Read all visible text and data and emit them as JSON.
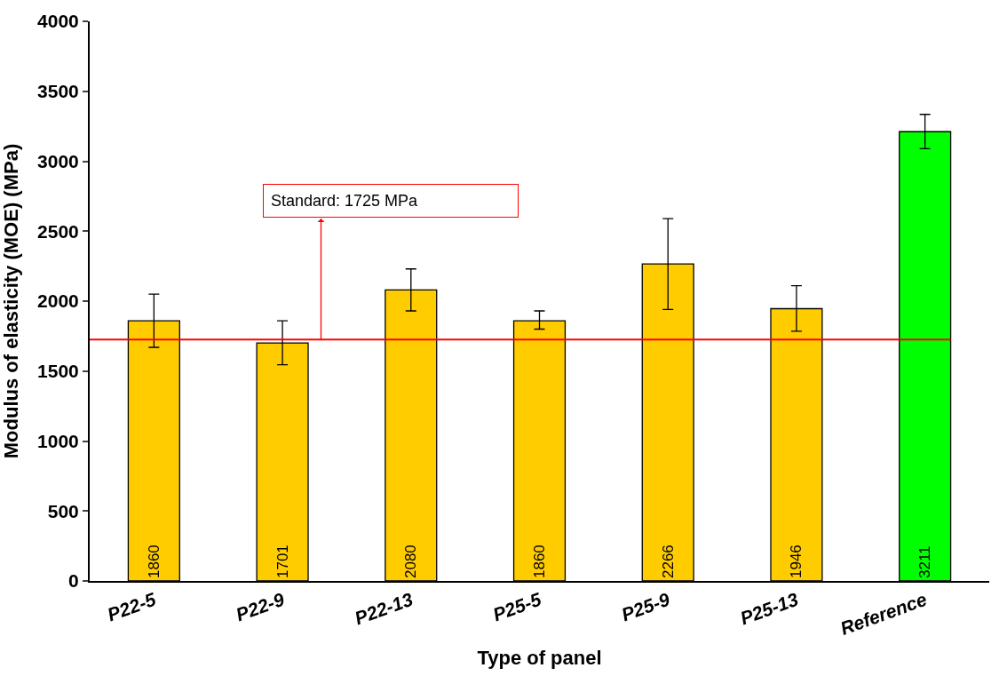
{
  "chart_data": {
    "type": "bar",
    "xlabel": "Type of panel",
    "ylabel": "Modulus of elasticity (MOE) (MPa)",
    "categories": [
      "P22-5",
      "P22-9",
      "P22-13",
      "P25-5",
      "P25-9",
      "P25-13",
      "Reference"
    ],
    "values": [
      1860,
      1701,
      2080,
      1860,
      2266,
      1946,
      3211
    ],
    "colors": [
      "#ffcc00",
      "#ffcc00",
      "#ffcc00",
      "#ffcc00",
      "#ffcc00",
      "#ffcc00",
      "#00ff00"
    ],
    "errors": [
      [
        1670,
        2050
      ],
      [
        1545,
        1860
      ],
      [
        1930,
        2230
      ],
      [
        1800,
        1930
      ],
      [
        1940,
        2590
      ],
      [
        1785,
        2110
      ],
      [
        3090,
        3335
      ]
    ],
    "data_labels": true,
    "ylim": [
      0,
      4000
    ],
    "yticks": [
      0,
      500,
      1000,
      1500,
      2000,
      2500,
      3000,
      3500,
      4000
    ],
    "ref_lines": [
      {
        "axis": "y",
        "value": 1725,
        "label": "Standard: 1725 MPa",
        "color": "#ff0000",
        "line_style": "solid"
      }
    ]
  }
}
